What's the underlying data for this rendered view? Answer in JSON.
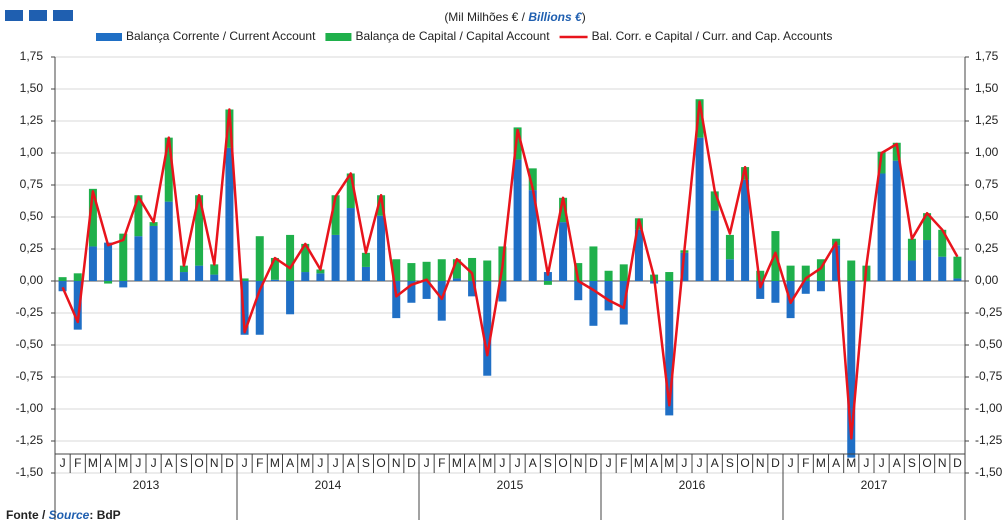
{
  "chart_data": {
    "type": "bar",
    "subtitle_parts": [
      "(Mil Milhões € / ",
      "Billions €",
      ")"
    ],
    "source_parts": [
      "Fonte / ",
      "Source",
      ": BdP"
    ],
    "categories": [
      "J",
      "F",
      "M",
      "A",
      "M",
      "J",
      "J",
      "A",
      "S",
      "O",
      "N",
      "D",
      "J",
      "F",
      "M",
      "A",
      "M",
      "J",
      "J",
      "A",
      "S",
      "O",
      "N",
      "D",
      "J",
      "F",
      "M",
      "A",
      "M",
      "J",
      "J",
      "A",
      "S",
      "O",
      "N",
      "D",
      "J",
      "F",
      "M",
      "A",
      "M",
      "J",
      "J",
      "A",
      "S",
      "O",
      "N",
      "D",
      "J",
      "F",
      "M",
      "A",
      "M",
      "J",
      "J",
      "A",
      "S",
      "O",
      "N",
      "D"
    ],
    "years": [
      "2013",
      "2014",
      "2015",
      "2016",
      "2017"
    ],
    "series": [
      {
        "name": "Balança Corrente / Current Account",
        "color": "#1f6fc5",
        "kind": "bar",
        "values": [
          -0.08,
          -0.38,
          0.27,
          0.3,
          -0.05,
          0.35,
          0.43,
          0.62,
          0.07,
          0.12,
          0.05,
          1.04,
          -0.42,
          -0.42,
          0.01,
          -0.26,
          0.07,
          0.06,
          0.36,
          0.57,
          0.11,
          0.51,
          -0.29,
          -0.17,
          -0.14,
          -0.31,
          0.02,
          -0.12,
          -0.74,
          -0.16,
          0.95,
          0.71,
          0.07,
          0.46,
          -0.15,
          -0.35,
          -0.23,
          -0.34,
          0.4,
          -0.02,
          -1.05,
          0.22,
          1.12,
          0.55,
          0.17,
          0.79,
          -0.14,
          -0.17,
          -0.29,
          -0.1,
          -0.08,
          0.28,
          -1.38,
          0,
          0.84,
          0.94,
          0.16,
          0.32,
          0.19,
          0.02
        ]
      },
      {
        "name": "Balança de Capital / Capital Account",
        "color": "#1fb04b",
        "kind": "bar",
        "values": [
          0.03,
          0.06,
          0.45,
          -0.02,
          0.37,
          0.32,
          0.03,
          0.5,
          0.05,
          0.55,
          0.08,
          0.3,
          0.02,
          0.35,
          0.17,
          0.36,
          0.22,
          0.03,
          0.31,
          0.27,
          0.11,
          0.16,
          0.17,
          0.14,
          0.15,
          0.17,
          0.15,
          0.18,
          0.16,
          0.27,
          0.25,
          0.17,
          -0.03,
          0.19,
          0.14,
          0.27,
          0.08,
          0.13,
          0.09,
          0.05,
          0.07,
          0.02,
          0.3,
          0.15,
          0.19,
          0.1,
          0.08,
          0.39,
          0.12,
          0.12,
          0.17,
          0.05,
          0.16,
          0.12,
          0.17,
          0.14,
          0.17,
          0.21,
          0.21,
          0.17
        ]
      },
      {
        "name": "Bal. Corr. e Capital / Curr. and Cap. Accounts",
        "color": "#e8141c",
        "kind": "line",
        "values": [
          -0.05,
          -0.32,
          0.7,
          0.28,
          0.32,
          0.66,
          0.46,
          1.12,
          0.12,
          0.67,
          0.13,
          1.34,
          -0.4,
          -0.07,
          0.18,
          0.1,
          0.29,
          0.09,
          0.66,
          0.84,
          0.22,
          0.67,
          -0.12,
          -0.03,
          0.01,
          -0.14,
          0.17,
          0.06,
          -0.58,
          0.11,
          1.18,
          0.72,
          0.05,
          0.65,
          0.0,
          -0.07,
          -0.15,
          -0.21,
          0.48,
          0.03,
          -0.97,
          0.24,
          1.4,
          0.7,
          0.37,
          0.89,
          -0.05,
          0.22,
          -0.17,
          0.02,
          0.1,
          0.3,
          -1.23,
          0.12,
          1.0,
          1.07,
          0.33,
          0.53,
          0.4,
          0.19
        ]
      }
    ],
    "ylim": [
      -1.5,
      1.75
    ],
    "yticks": [
      {
        "value": 1.75,
        "label": "1,75"
      },
      {
        "value": 1.5,
        "label": "1,50"
      },
      {
        "value": 1.25,
        "label": "1,25"
      },
      {
        "value": 1,
        "label": "1,00"
      },
      {
        "value": 0.75,
        "label": "0,75"
      },
      {
        "value": 0.5,
        "label": "0,50"
      },
      {
        "value": 0.25,
        "label": "0,25"
      },
      {
        "value": 0,
        "label": "0,00"
      },
      {
        "value": -0.25,
        "label": "-0,25"
      },
      {
        "value": -0.5,
        "label": "-0,50"
      },
      {
        "value": -0.75,
        "label": "-0,75"
      },
      {
        "value": -1,
        "label": "-1,00"
      },
      {
        "value": -1.25,
        "label": "-1,25"
      },
      {
        "value": -1.5,
        "label": "-1,50"
      }
    ],
    "grid": true
  }
}
